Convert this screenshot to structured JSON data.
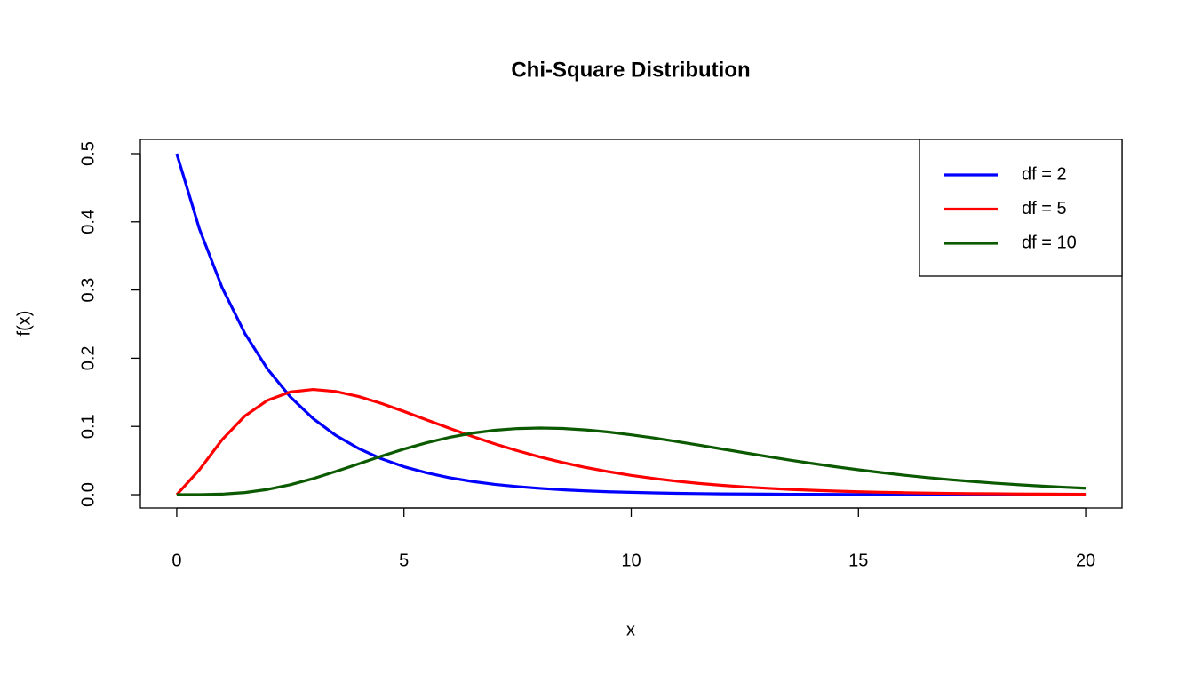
{
  "chart_data": {
    "type": "line",
    "title": "Chi-Square Distribution",
    "x_label": "x",
    "y_label": "f(x)",
    "x": [
      0,
      0.5,
      1,
      1.5,
      2,
      2.5,
      3,
      3.5,
      4,
      4.5,
      5,
      5.5,
      6,
      6.5,
      7,
      7.5,
      8,
      8.5,
      9,
      9.5,
      10,
      10.5,
      11,
      11.5,
      12,
      12.5,
      13,
      13.5,
      14,
      14.5,
      15,
      15.5,
      16,
      16.5,
      17,
      17.5,
      18,
      18.5,
      19,
      19.5,
      20
    ],
    "series": [
      {
        "name": "df = 2",
        "color": "#0000ff",
        "values": [
          0.5,
          0.3894,
          0.3033,
          0.2362,
          0.1839,
          0.1433,
          0.1116,
          0.0869,
          0.0677,
          0.0527,
          0.041,
          0.032,
          0.0249,
          0.0194,
          0.0151,
          0.0118,
          0.0092,
          0.0071,
          0.0056,
          0.0043,
          0.0034,
          0.0026,
          0.002,
          0.0016,
          0.0012,
          0.001,
          0.0008,
          0.0006,
          0.0005,
          0.0004,
          0.0003,
          0.0002,
          0.0002,
          0.0001,
          0.0001,
          0.0001,
          0.0001,
          0,
          0,
          0,
          0
        ]
      },
      {
        "name": "df = 5",
        "color": "#ff0000",
        "values": [
          0,
          0.0366,
          0.0807,
          0.1154,
          0.1384,
          0.1506,
          0.1542,
          0.1513,
          0.144,
          0.1338,
          0.122,
          0.1096,
          0.0973,
          0.0855,
          0.0744,
          0.0643,
          0.0551,
          0.047,
          0.0399,
          0.0337,
          0.0283,
          0.0237,
          0.0198,
          0.0165,
          0.0137,
          0.0113,
          0.0094,
          0.0077,
          0.0064,
          0.0052,
          0.0043,
          0.0035,
          0.0029,
          0.0023,
          0.0019,
          0.0015,
          0.0013,
          0.001,
          0.0008,
          0.0007,
          0.0005
        ]
      },
      {
        "name": "df = 10",
        "color": "#0b5a00",
        "values": [
          0,
          0.0001,
          0.0008,
          0.0031,
          0.0077,
          0.0146,
          0.0235,
          0.034,
          0.0451,
          0.0563,
          0.0668,
          0.0761,
          0.084,
          0.0902,
          0.0944,
          0.0969,
          0.0977,
          0.097,
          0.0949,
          0.0918,
          0.0877,
          0.0831,
          0.0779,
          0.0725,
          0.0669,
          0.0614,
          0.0559,
          0.0506,
          0.0456,
          0.0409,
          0.0365,
          0.0324,
          0.0286,
          0.0252,
          0.0221,
          0.0194,
          0.0169,
          0.0147,
          0.0127,
          0.011,
          0.0095
        ]
      }
    ],
    "xlim": [
      -0.8,
      20.8
    ],
    "ylim": [
      -0.0195,
      0.5208
    ],
    "xticks": [
      0,
      5,
      10,
      15,
      20
    ],
    "yticks": [
      {
        "value": 0,
        "label": "0.0"
      },
      {
        "value": 0.1,
        "label": "0.1"
      },
      {
        "value": 0.2,
        "label": "0.2"
      },
      {
        "value": 0.3,
        "label": "0.3"
      },
      {
        "value": 0.4,
        "label": "0.4"
      },
      {
        "value": 0.5,
        "label": "0.5"
      }
    ],
    "grid": false,
    "legend": "topright"
  }
}
